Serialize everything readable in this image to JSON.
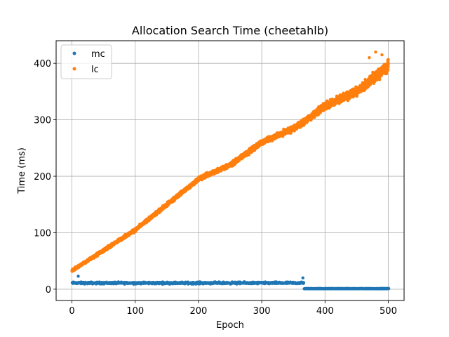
{
  "chart_data": {
    "type": "scatter",
    "title": "Allocation Search Time (cheetahlb)",
    "xlabel": "Epoch",
    "ylabel": "Time (ms)",
    "xlim": [
      -25,
      525
    ],
    "ylim": [
      -20,
      440
    ],
    "xticks": [
      0,
      100,
      200,
      300,
      400,
      500
    ],
    "yticks": [
      0,
      100,
      200,
      300,
      400
    ],
    "grid": true,
    "legend_position": "top-left",
    "series": [
      {
        "name": "mc",
        "color": "#1f77b4",
        "segments": [
          {
            "x_range": [
              0,
              366
            ],
            "y_mean": 11,
            "y_spread": 2.5
          },
          {
            "x_range": [
              367,
              500
            ],
            "y_mean": 1,
            "y_spread": 0.5
          }
        ],
        "outliers": [
          [
            10,
            23
          ],
          [
            365,
            20
          ]
        ]
      },
      {
        "name": "lc",
        "color": "#ff7f0e",
        "trend": [
          [
            0,
            33
          ],
          [
            100,
            105
          ],
          [
            200,
            195
          ],
          [
            250,
            220
          ],
          [
            300,
            260
          ],
          [
            350,
            285
          ],
          [
            365,
            295
          ],
          [
            400,
            325
          ],
          [
            450,
            350
          ],
          [
            500,
            395
          ]
        ],
        "noise_growth": [
          [
            0,
            3
          ],
          [
            300,
            6
          ],
          [
            450,
            10
          ],
          [
            500,
            15
          ]
        ],
        "outliers": [
          [
            470,
            410
          ],
          [
            480,
            420
          ],
          [
            490,
            415
          ],
          [
            475,
            375
          ]
        ]
      }
    ]
  }
}
